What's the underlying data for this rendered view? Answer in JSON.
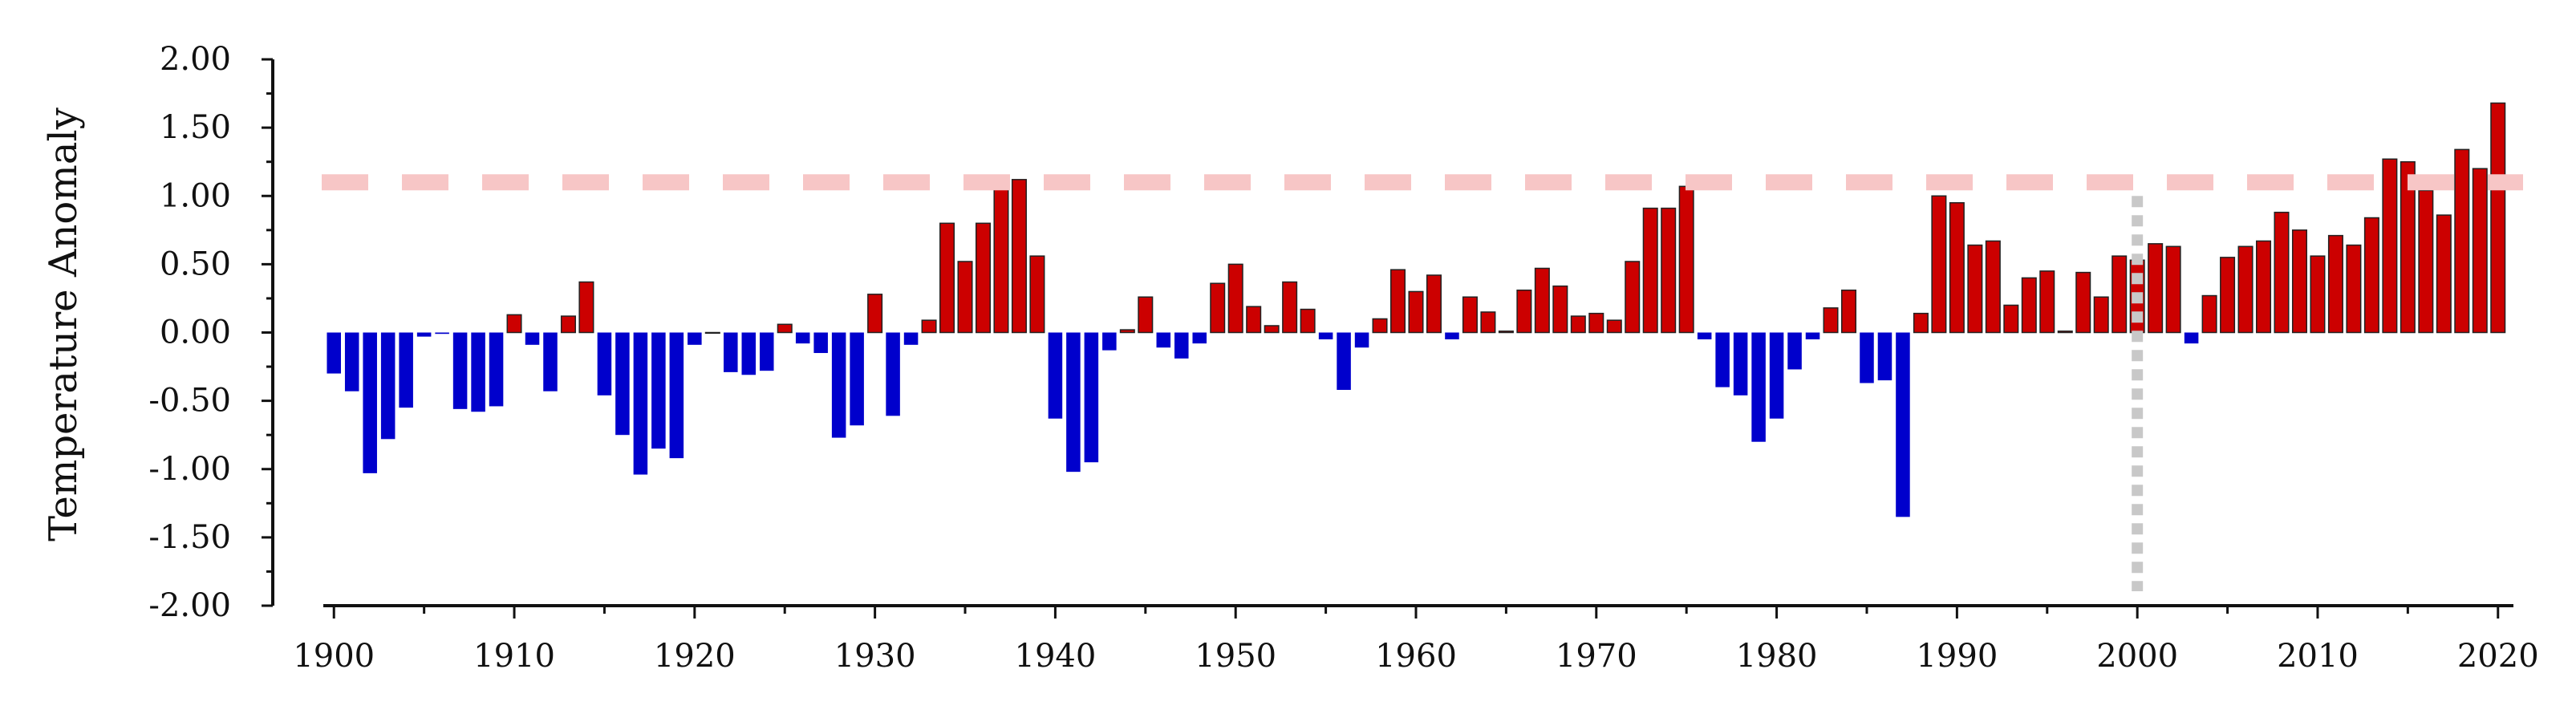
{
  "chart_data": {
    "type": "bar",
    "ylabel": "Temperature Anomaly",
    "ylim": [
      -2.0,
      2.0
    ],
    "xlim": [
      1899.5,
      2020.5
    ],
    "yticks": [
      "2.00",
      "1.50",
      "1.00",
      "0.50",
      "0.00",
      "-0.50",
      "-1.00",
      "-1.50",
      "-2.00"
    ],
    "ytick_values": [
      2.0,
      1.5,
      1.0,
      0.5,
      0.0,
      -0.5,
      -1.0,
      -1.5,
      -2.0
    ],
    "xticks": [
      "1900",
      "1910",
      "1920",
      "1930",
      "1940",
      "1950",
      "1960",
      "1970",
      "1980",
      "1990",
      "2000",
      "2010",
      "2020"
    ],
    "xtick_values": [
      1900,
      1910,
      1920,
      1930,
      1940,
      1950,
      1960,
      1970,
      1980,
      1990,
      2000,
      2010,
      2020
    ],
    "reference_line": {
      "y": 1.1,
      "style": "dashed",
      "color": "#f7c6c6"
    },
    "marker_line": {
      "x": 2000,
      "style": "dotted",
      "color": "#c8c8c8"
    },
    "colors": {
      "positive": "#cc0000",
      "negative": "#0000cc",
      "bar_edge": "#222222"
    },
    "grid": false,
    "x": [
      1900,
      1901,
      1902,
      1903,
      1904,
      1905,
      1906,
      1907,
      1908,
      1909,
      1910,
      1911,
      1912,
      1913,
      1914,
      1915,
      1916,
      1917,
      1918,
      1919,
      1920,
      1921,
      1922,
      1923,
      1924,
      1925,
      1926,
      1927,
      1928,
      1929,
      1930,
      1931,
      1932,
      1933,
      1934,
      1935,
      1936,
      1937,
      1938,
      1939,
      1940,
      1941,
      1942,
      1943,
      1944,
      1945,
      1946,
      1947,
      1948,
      1949,
      1950,
      1951,
      1952,
      1953,
      1954,
      1955,
      1956,
      1957,
      1958,
      1959,
      1960,
      1961,
      1962,
      1963,
      1964,
      1965,
      1966,
      1967,
      1968,
      1969,
      1970,
      1971,
      1972,
      1973,
      1974,
      1975,
      1976,
      1977,
      1978,
      1979,
      1980,
      1981,
      1982,
      1983,
      1984,
      1985,
      1986,
      1987,
      1988,
      1989,
      1990,
      1991,
      1992,
      1993,
      1994,
      1995,
      1996,
      1997,
      1998,
      1999,
      2000,
      2001,
      2002,
      2003,
      2004,
      2005,
      2006,
      2007,
      2008,
      2009,
      2010,
      2011,
      2012,
      2013,
      2014,
      2015,
      2016,
      2017,
      2018,
      2019,
      2020
    ],
    "values": [
      -0.3,
      -0.43,
      -1.03,
      -0.78,
      -0.55,
      -0.03,
      -0.01,
      -0.56,
      -0.58,
      -0.54,
      0.13,
      -0.09,
      -0.43,
      0.12,
      0.37,
      -0.46,
      -0.75,
      -1.04,
      -0.85,
      -0.92,
      -0.09,
      0.0,
      -0.29,
      -0.31,
      -0.28,
      0.06,
      -0.08,
      -0.15,
      -0.77,
      -0.68,
      0.28,
      -0.61,
      -0.09,
      0.09,
      0.8,
      0.52,
      0.8,
      1.05,
      1.12,
      0.56,
      -0.63,
      -1.02,
      -0.95,
      -0.13,
      0.02,
      0.26,
      -0.11,
      -0.19,
      -0.08,
      0.36,
      0.5,
      0.19,
      0.05,
      0.37,
      0.17,
      -0.05,
      -0.42,
      -0.11,
      0.1,
      0.46,
      0.3,
      0.42,
      -0.05,
      0.26,
      0.15,
      0.01,
      0.31,
      0.47,
      0.34,
      0.12,
      0.14,
      0.09,
      0.52,
      0.91,
      0.91,
      1.07,
      -0.05,
      -0.4,
      -0.46,
      -0.8,
      -0.63,
      -0.27,
      -0.05,
      0.18,
      0.31,
      -0.37,
      -0.35,
      -1.35,
      0.14,
      1.0,
      0.95,
      0.64,
      0.67,
      0.2,
      0.4,
      0.45,
      0.01,
      0.44,
      0.26,
      0.56,
      0.53,
      0.65,
      0.63,
      -0.08,
      0.27,
      0.55,
      0.63,
      0.67,
      0.88,
      0.75,
      0.56,
      0.71,
      0.64,
      0.84,
      1.27,
      1.25,
      1.04,
      0.86,
      1.34,
      1.2,
      1.68
    ]
  }
}
